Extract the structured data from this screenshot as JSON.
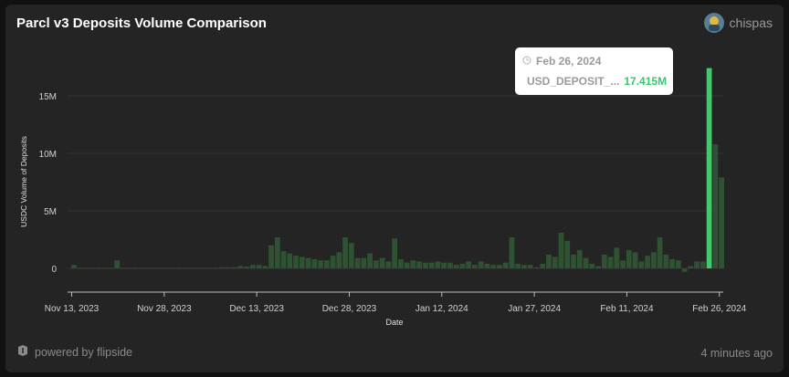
{
  "header": {
    "title": "Parcl v3 Deposits Volume Comparison",
    "author": "chispas"
  },
  "footer": {
    "powered_by": "powered by flipside",
    "updated": "4 minutes ago"
  },
  "tooltip": {
    "date": "Feb 26, 2024",
    "series": "USD_DEPOSIT_...",
    "value": "17.415M"
  },
  "colors": {
    "bar": "#2f5233",
    "bar_highlight": "#45c76e",
    "background": "#242424"
  },
  "chart_data": {
    "type": "bar",
    "title": "Parcl v3 Deposits Volume Comparison",
    "xlabel": "Date",
    "ylabel": "USDC Volume of Deposits",
    "x_tick_labels": [
      "Nov 13, 2023",
      "Nov 28, 2023",
      "Dec 13, 2023",
      "Dec 28, 2023",
      "Jan 12, 2024",
      "Jan 27, 2024",
      "Feb 11, 2024",
      "Feb 26, 2024"
    ],
    "y_tick_labels": [
      "0",
      "5M",
      "10M",
      "15M"
    ],
    "ylim": [
      -2000000,
      18000000
    ],
    "grid": true,
    "start_date": "2023-11-13",
    "series": [
      {
        "name": "USD_DEPOSIT_...",
        "values": [
          0.3,
          0.05,
          0.05,
          0.05,
          0.05,
          0.05,
          0.05,
          0.7,
          0.05,
          0.05,
          0.05,
          0.05,
          0.05,
          0.05,
          0.05,
          0.05,
          0.05,
          0.05,
          0.05,
          0.05,
          0.05,
          0.05,
          0.05,
          0.05,
          0.1,
          0.1,
          0.1,
          0.2,
          0.15,
          0.3,
          0.3,
          0.2,
          2.0,
          2.7,
          1.5,
          1.3,
          1.1,
          1.0,
          0.9,
          0.8,
          0.7,
          0.7,
          1.1,
          1.4,
          2.7,
          2.2,
          0.9,
          0.9,
          1.3,
          0.7,
          0.9,
          0.6,
          2.6,
          0.8,
          0.5,
          0.7,
          0.6,
          0.5,
          0.5,
          0.6,
          0.5,
          0.5,
          0.3,
          0.4,
          0.6,
          0.3,
          0.6,
          0.4,
          0.3,
          0.3,
          0.5,
          2.7,
          0.4,
          0.3,
          0.3,
          0.1,
          0.4,
          1.2,
          1.0,
          3.1,
          2.4,
          1.2,
          1.6,
          0.9,
          0.4,
          0.2,
          1.2,
          1.0,
          1.8,
          0.7,
          1.6,
          1.4,
          0.6,
          1.1,
          1.4,
          2.7,
          1.2,
          0.8,
          0.7,
          -0.3,
          0.2,
          0.6,
          0.6,
          17.415,
          10.8,
          7.9
        ]
      }
    ]
  }
}
